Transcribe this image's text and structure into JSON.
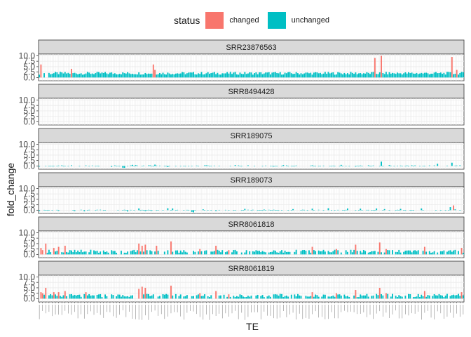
{
  "chart_data": {
    "type": "bar",
    "legend": {
      "title": "status",
      "position": "top",
      "entries": [
        {
          "label": "changed",
          "color": "#F8766D"
        },
        {
          "label": "unchanged",
          "color": "#00BFC4"
        }
      ]
    },
    "xlabel": "TE",
    "ylabel": "fold_change",
    "ylim": [
      -1.5,
      10.8
    ],
    "yticks": [
      "0.0",
      "2.5",
      "5.0",
      "7.5",
      "10.0"
    ],
    "grid": true,
    "category_count": 150,
    "panels": [
      {
        "name": "SRR23876563",
        "changed": [
          [
            1,
            6.0
          ],
          [
            20,
            4.0
          ],
          [
            71,
            6.0
          ],
          [
            72,
            3.5
          ],
          [
            209,
            9.0
          ],
          [
            213,
            10.0
          ],
          [
            257,
            9.5
          ],
          [
            260,
            3.5
          ]
        ],
        "gap_indices": [
          2,
          4,
          5,
          72
        ]
      },
      {
        "name": "SRR8494428",
        "changed": [],
        "empty": true
      },
      {
        "name": "SRR189075",
        "changed": [],
        "bars": [
          [
            0,
            -0.3
          ],
          [
            8,
            -0.2
          ],
          [
            20,
            0.3
          ],
          [
            33,
            0.2
          ],
          [
            45,
            -0.4
          ],
          [
            52,
            -0.8
          ],
          [
            53,
            -0.9
          ],
          [
            58,
            0.5
          ],
          [
            60,
            0.4
          ],
          [
            72,
            0.6
          ],
          [
            80,
            -0.5
          ],
          [
            104,
            0.3
          ],
          [
            122,
            0.4
          ],
          [
            130,
            0.3
          ],
          [
            146,
            -0.3
          ],
          [
            152,
            0.4
          ],
          [
            170,
            0.3
          ],
          [
            188,
            0.5
          ],
          [
            197,
            -0.3
          ],
          [
            205,
            0.3
          ],
          [
            213,
            2.0
          ],
          [
            218,
            0.4
          ],
          [
            232,
            0.3
          ],
          [
            248,
            1.0
          ],
          [
            257,
            1.5
          ],
          [
            262,
            0.3
          ]
        ],
        "default_abs": 0.25
      },
      {
        "name": "SRR189073",
        "changed": [
          [
            258,
            2.2
          ]
        ],
        "bars": [
          [
            0,
            -0.4
          ],
          [
            12,
            -0.3
          ],
          [
            22,
            -0.4
          ],
          [
            28,
            -0.5
          ],
          [
            40,
            -0.2
          ],
          [
            55,
            -0.6
          ],
          [
            62,
            0.8
          ],
          [
            66,
            -0.4
          ],
          [
            70,
            -0.3
          ],
          [
            80,
            0.9
          ],
          [
            83,
            0.8
          ],
          [
            95,
            -0.8
          ],
          [
            96,
            -1.0
          ],
          [
            102,
            0.4
          ],
          [
            110,
            -0.4
          ],
          [
            128,
            0.6
          ],
          [
            140,
            0.3
          ],
          [
            158,
            0.5
          ],
          [
            170,
            0.7
          ],
          [
            180,
            0.9
          ],
          [
            192,
            0.8
          ],
          [
            200,
            0.7
          ],
          [
            210,
            0.8
          ],
          [
            215,
            0.5
          ],
          [
            225,
            0.6
          ],
          [
            238,
            0.8
          ],
          [
            256,
            1.4
          ],
          [
            259,
            0.4
          ]
        ],
        "default_abs": 0.2
      },
      {
        "name": "SRR8061818",
        "changed": [
          [
            1,
            3.0
          ],
          [
            2,
            2.0
          ],
          [
            4,
            5.0
          ],
          [
            9,
            3.0
          ],
          [
            12,
            3.5
          ],
          [
            16,
            4.0
          ],
          [
            62,
            5.0
          ],
          [
            64,
            4.0
          ],
          [
            66,
            4.5
          ],
          [
            73,
            4.0
          ],
          [
            82,
            6.0
          ],
          [
            100,
            2.5
          ],
          [
            110,
            4.0
          ],
          [
            118,
            2.0
          ],
          [
            170,
            3.5
          ],
          [
            185,
            2.5
          ],
          [
            197,
            4.5
          ],
          [
            212,
            5.5
          ],
          [
            216,
            2.5
          ],
          [
            240,
            3.5
          ],
          [
            263,
            3.0
          ]
        ],
        "gap_indices": []
      },
      {
        "name": "SRR8061819",
        "changed": [
          [
            1,
            3.0
          ],
          [
            2,
            2.5
          ],
          [
            4,
            5.0
          ],
          [
            9,
            3.0
          ],
          [
            12,
            3.0
          ],
          [
            16,
            3.5
          ],
          [
            29,
            3.0
          ],
          [
            62,
            4.5
          ],
          [
            64,
            5.5
          ],
          [
            66,
            5.0
          ],
          [
            82,
            6.0
          ],
          [
            100,
            2.5
          ],
          [
            110,
            3.5
          ],
          [
            118,
            2.0
          ],
          [
            170,
            3.0
          ],
          [
            185,
            2.5
          ],
          [
            197,
            4.0
          ],
          [
            212,
            5.0
          ],
          [
            216,
            2.5
          ],
          [
            240,
            3.5
          ],
          [
            263,
            3.0
          ]
        ],
        "gap_indices": []
      }
    ]
  }
}
